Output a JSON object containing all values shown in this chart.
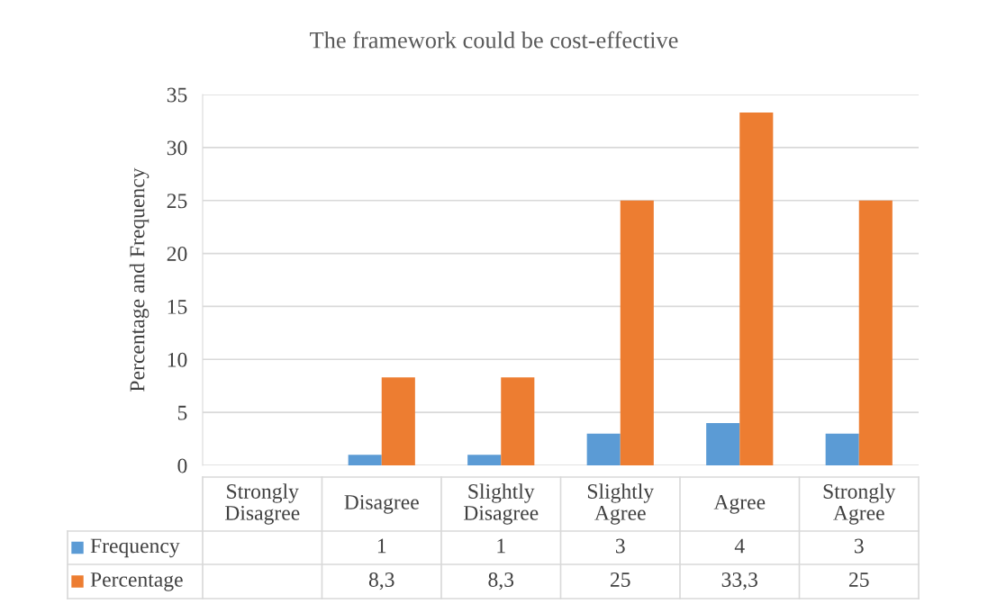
{
  "chart_data": {
    "type": "bar",
    "title": "The framework could be cost-effective",
    "ylabel": "Percentage and Frequency",
    "categories": [
      "Strongly\nDisagree",
      "Disagree",
      "Slightly\nDisagree",
      "Slightly\nAgree",
      "Agree",
      "Strongly\nAgree"
    ],
    "series": [
      {
        "name": "Frequency",
        "color": "#5b9bd5",
        "values": [
          null,
          1,
          1,
          3,
          4,
          3
        ],
        "value_labels": [
          null,
          "1",
          "1",
          "3",
          "4",
          "3"
        ]
      },
      {
        "name": "Percentage",
        "color": "#ed7d31",
        "values": [
          null,
          8.3,
          8.3,
          25,
          33.3,
          25
        ],
        "value_labels": [
          null,
          "8,3",
          "8,3",
          "25",
          "33,3",
          "25"
        ]
      }
    ],
    "ylim": [
      0,
      35
    ],
    "yticks": [
      0,
      5,
      10,
      15,
      20,
      25,
      30,
      35
    ],
    "grid": "y",
    "legend": "bottom"
  }
}
